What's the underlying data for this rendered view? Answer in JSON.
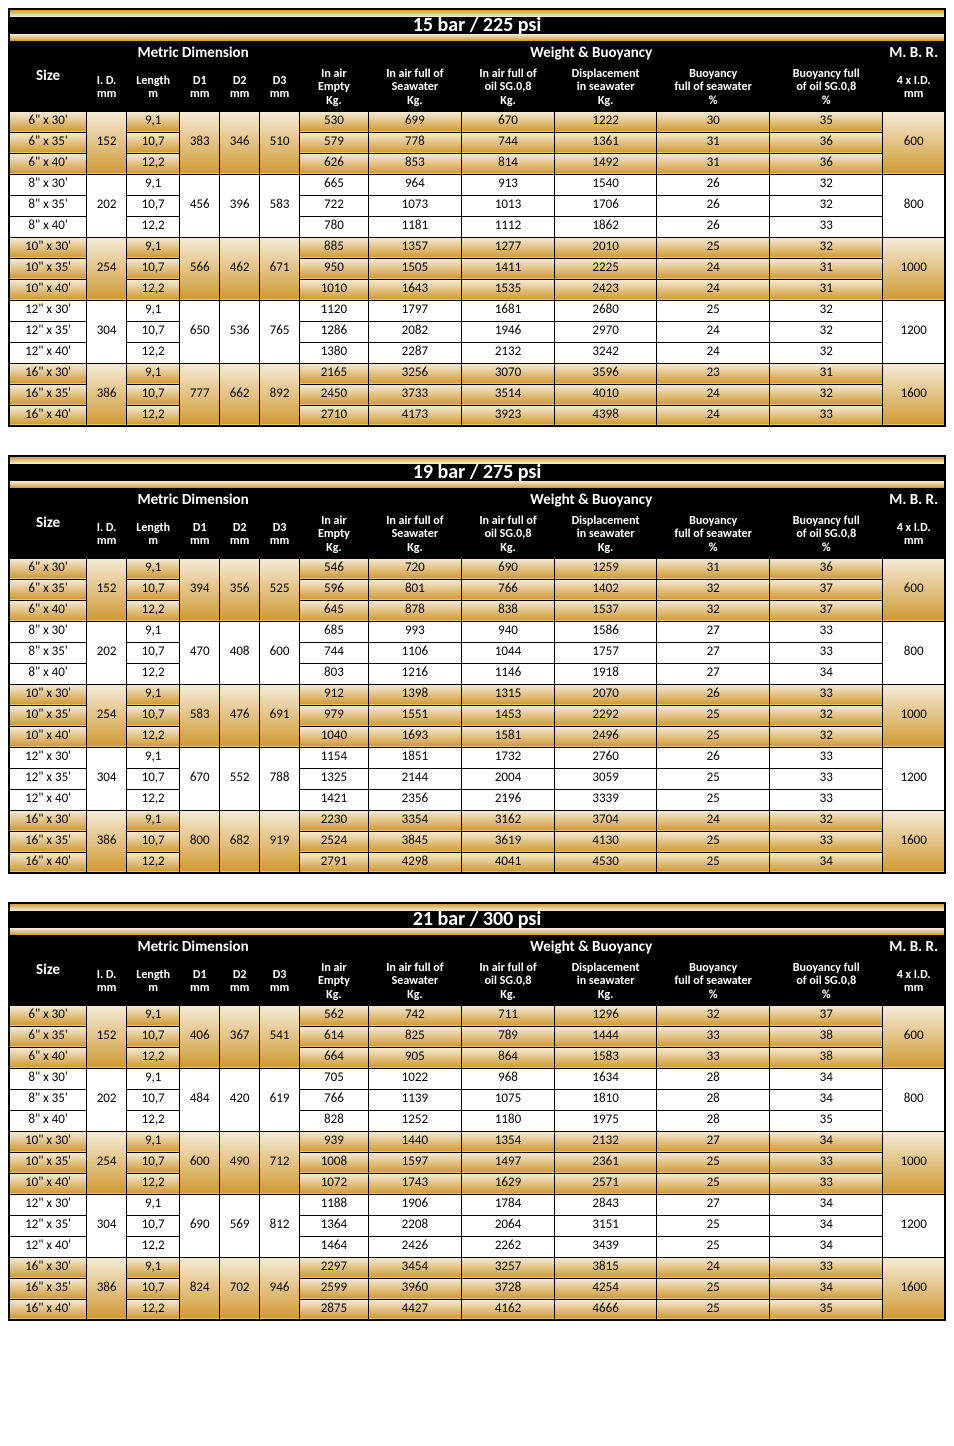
{
  "colors": {
    "gradient_top": "#f5ebd8",
    "gradient_bottom": "#d19a33",
    "header_bg": "#000000",
    "header_text": "#ffffff",
    "border": "#000000"
  },
  "typography": {
    "font_family": "Calibri",
    "title_fontsize": 20,
    "header1_fontsize": 15,
    "header2_fontsize": 12,
    "cell_fontsize": 13
  },
  "headers": {
    "size": "Size",
    "metric": "Metric Dimension",
    "weight": "Weight & Buoyancy",
    "mbr": "M. B. R.",
    "id": "I. D.\nmm",
    "length": "Length\nm",
    "d1": "D1\nmm",
    "d2": "D2\nmm",
    "d3": "D3\nmm",
    "air_empty": "In air\nEmpty\nKg.",
    "air_sea": "In air full of\nSeawater\nKg.",
    "air_oil": "In air full of\noil SG.0,8\nKg.",
    "disp": "Displacement\nin seawater\nKg.",
    "buoy_sea": "Buoyancy\nfull of seawater\n%",
    "buoy_oil": "Buoyancy full\nof oil SG.0,8\n%",
    "mbr_sub": "4 x I.D.\nmm"
  },
  "tables": [
    {
      "title": "15 bar / 225 psi",
      "groups": [
        {
          "id": "152",
          "d1": "383",
          "d2": "346",
          "d3": "510",
          "mbr": "600",
          "shaded": true,
          "rows": [
            {
              "size": "6\" x 30'",
              "len": "9,1",
              "w": [
                "530",
                "699",
                "670",
                "1222",
                "30",
                "35"
              ]
            },
            {
              "size": "6\" x 35'",
              "len": "10,7",
              "w": [
                "579",
                "778",
                "744",
                "1361",
                "31",
                "36"
              ]
            },
            {
              "size": "6\" x 40'",
              "len": "12,2",
              "w": [
                "626",
                "853",
                "814",
                "1492",
                "31",
                "36"
              ]
            }
          ]
        },
        {
          "id": "202",
          "d1": "456",
          "d2": "396",
          "d3": "583",
          "mbr": "800",
          "shaded": false,
          "rows": [
            {
              "size": "8\" x 30'",
              "len": "9,1",
              "w": [
                "665",
                "964",
                "913",
                "1540",
                "26",
                "32"
              ]
            },
            {
              "size": "8\" x 35'",
              "len": "10,7",
              "w": [
                "722",
                "1073",
                "1013",
                "1706",
                "26",
                "32"
              ]
            },
            {
              "size": "8\" x 40'",
              "len": "12,2",
              "w": [
                "780",
                "1181",
                "1112",
                "1862",
                "26",
                "33"
              ]
            }
          ]
        },
        {
          "id": "254",
          "d1": "566",
          "d2": "462",
          "d3": "671",
          "mbr": "1000",
          "shaded": true,
          "rows": [
            {
              "size": "10\" x 30'",
              "len": "9,1",
              "w": [
                "885",
                "1357",
                "1277",
                "2010",
                "25",
                "32"
              ]
            },
            {
              "size": "10\" x 35'",
              "len": "10,7",
              "w": [
                "950",
                "1505",
                "1411",
                "2225",
                "24",
                "31"
              ]
            },
            {
              "size": "10\" x 40'",
              "len": "12,2",
              "w": [
                "1010",
                "1643",
                "1535",
                "2423",
                "24",
                "31"
              ]
            }
          ]
        },
        {
          "id": "304",
          "d1": "650",
          "d2": "536",
          "d3": "765",
          "mbr": "1200",
          "shaded": false,
          "rows": [
            {
              "size": "12\" x 30'",
              "len": "9,1",
              "w": [
                "1120",
                "1797",
                "1681",
                "2680",
                "25",
                "32"
              ]
            },
            {
              "size": "12\" x 35'",
              "len": "10,7",
              "w": [
                "1286",
                "2082",
                "1946",
                "2970",
                "24",
                "32"
              ]
            },
            {
              "size": "12\" x 40'",
              "len": "12,2",
              "w": [
                "1380",
                "2287",
                "2132",
                "3242",
                "24",
                "32"
              ]
            }
          ]
        },
        {
          "id": "386",
          "d1": "777",
          "d2": "662",
          "d3": "892",
          "mbr": "1600",
          "shaded": true,
          "rows": [
            {
              "size": "16\" x 30'",
              "len": "9,1",
              "w": [
                "2165",
                "3256",
                "3070",
                "3596",
                "23",
                "31"
              ]
            },
            {
              "size": "16\" x 35'",
              "len": "10,7",
              "w": [
                "2450",
                "3733",
                "3514",
                "4010",
                "24",
                "32"
              ]
            },
            {
              "size": "16\" x 40'",
              "len": "12,2",
              "w": [
                "2710",
                "4173",
                "3923",
                "4398",
                "24",
                "33"
              ]
            }
          ]
        }
      ]
    },
    {
      "title": "19 bar / 275 psi",
      "groups": [
        {
          "id": "152",
          "d1": "394",
          "d2": "356",
          "d3": "525",
          "mbr": "600",
          "shaded": true,
          "rows": [
            {
              "size": "6\" x 30'",
              "len": "9,1",
              "w": [
                "546",
                "720",
                "690",
                "1259",
                "31",
                "36"
              ]
            },
            {
              "size": "6\" x 35'",
              "len": "10,7",
              "w": [
                "596",
                "801",
                "766",
                "1402",
                "32",
                "37"
              ]
            },
            {
              "size": "6\" x 40'",
              "len": "12,2",
              "w": [
                "645",
                "878",
                "838",
                "1537",
                "32",
                "37"
              ]
            }
          ]
        },
        {
          "id": "202",
          "d1": "470",
          "d2": "408",
          "d3": "600",
          "mbr": "800",
          "shaded": false,
          "rows": [
            {
              "size": "8\" x 30'",
              "len": "9,1",
              "w": [
                "685",
                "993",
                "940",
                "1586",
                "27",
                "33"
              ]
            },
            {
              "size": "8\" x 35'",
              "len": "10,7",
              "w": [
                "744",
                "1106",
                "1044",
                "1757",
                "27",
                "33"
              ]
            },
            {
              "size": "8\" x 40'",
              "len": "12,2",
              "w": [
                "803",
                "1216",
                "1146",
                "1918",
                "27",
                "34"
              ]
            }
          ]
        },
        {
          "id": "254",
          "d1": "583",
          "d2": "476",
          "d3": "691",
          "mbr": "1000",
          "shaded": true,
          "rows": [
            {
              "size": "10\" x 30'",
              "len": "9,1",
              "w": [
                "912",
                "1398",
                "1315",
                "2070",
                "26",
                "33"
              ]
            },
            {
              "size": "10\" x 35'",
              "len": "10,7",
              "w": [
                "979",
                "1551",
                "1453",
                "2292",
                "25",
                "32"
              ]
            },
            {
              "size": "10\" x 40'",
              "len": "12,2",
              "w": [
                "1040",
                "1693",
                "1581",
                "2496",
                "25",
                "32"
              ]
            }
          ]
        },
        {
          "id": "304",
          "d1": "670",
          "d2": "552",
          "d3": "788",
          "mbr": "1200",
          "shaded": false,
          "rows": [
            {
              "size": "12\" x 30'",
              "len": "9,1",
              "w": [
                "1154",
                "1851",
                "1732",
                "2760",
                "26",
                "33"
              ]
            },
            {
              "size": "12\" x 35'",
              "len": "10,7",
              "w": [
                "1325",
                "2144",
                "2004",
                "3059",
                "25",
                "33"
              ]
            },
            {
              "size": "12\" x 40'",
              "len": "12,2",
              "w": [
                "1421",
                "2356",
                "2196",
                "3339",
                "25",
                "33"
              ]
            }
          ]
        },
        {
          "id": "386",
          "d1": "800",
          "d2": "682",
          "d3": "919",
          "mbr": "1600",
          "shaded": true,
          "rows": [
            {
              "size": "16\" x 30'",
              "len": "9,1",
              "w": [
                "2230",
                "3354",
                "3162",
                "3704",
                "24",
                "32"
              ]
            },
            {
              "size": "16\" x 35'",
              "len": "10,7",
              "w": [
                "2524",
                "3845",
                "3619",
                "4130",
                "25",
                "33"
              ]
            },
            {
              "size": "16\" x 40'",
              "len": "12,2",
              "w": [
                "2791",
                "4298",
                "4041",
                "4530",
                "25",
                "34"
              ]
            }
          ]
        }
      ]
    },
    {
      "title": "21 bar / 300 psi",
      "groups": [
        {
          "id": "152",
          "d1": "406",
          "d2": "367",
          "d3": "541",
          "mbr": "600",
          "shaded": true,
          "rows": [
            {
              "size": "6\" x 30'",
              "len": "9,1",
              "w": [
                "562",
                "742",
                "711",
                "1296",
                "32",
                "37"
              ]
            },
            {
              "size": "6\" x 35'",
              "len": "10,7",
              "w": [
                "614",
                "825",
                "789",
                "1444",
                "33",
                "38"
              ]
            },
            {
              "size": "6\" x 40'",
              "len": "12,2",
              "w": [
                "664",
                "905",
                "864",
                "1583",
                "33",
                "38"
              ]
            }
          ]
        },
        {
          "id": "202",
          "d1": "484",
          "d2": "420",
          "d3": "619",
          "mbr": "800",
          "shaded": false,
          "rows": [
            {
              "size": "8\" x 30'",
              "len": "9,1",
              "w": [
                "705",
                "1022",
                "968",
                "1634",
                "28",
                "34"
              ]
            },
            {
              "size": "8\" x 35'",
              "len": "10,7",
              "w": [
                "766",
                "1139",
                "1075",
                "1810",
                "28",
                "34"
              ]
            },
            {
              "size": "8\" x 40'",
              "len": "12,2",
              "w": [
                "828",
                "1252",
                "1180",
                "1975",
                "28",
                "35"
              ]
            }
          ]
        },
        {
          "id": "254",
          "d1": "600",
          "d2": "490",
          "d3": "712",
          "mbr": "1000",
          "shaded": true,
          "rows": [
            {
              "size": "10\" x 30'",
              "len": "9,1",
              "w": [
                "939",
                "1440",
                "1354",
                "2132",
                "27",
                "34"
              ]
            },
            {
              "size": "10\" x 35'",
              "len": "10,7",
              "w": [
                "1008",
                "1597",
                "1497",
                "2361",
                "25",
                "33"
              ]
            },
            {
              "size": "10\" x 40'",
              "len": "12,2",
              "w": [
                "1072",
                "1743",
                "1629",
                "2571",
                "25",
                "33"
              ]
            }
          ]
        },
        {
          "id": "304",
          "d1": "690",
          "d2": "569",
          "d3": "812",
          "mbr": "1200",
          "shaded": false,
          "rows": [
            {
              "size": "12\" x 30'",
              "len": "9,1",
              "w": [
                "1188",
                "1906",
                "1784",
                "2843",
                "27",
                "34"
              ]
            },
            {
              "size": "12\" x 35'",
              "len": "10,7",
              "w": [
                "1364",
                "2208",
                "2064",
                "3151",
                "25",
                "34"
              ]
            },
            {
              "size": "12\" x 40'",
              "len": "12,2",
              "w": [
                "1464",
                "2426",
                "2262",
                "3439",
                "25",
                "34"
              ]
            }
          ]
        },
        {
          "id": "386",
          "d1": "824",
          "d2": "702",
          "d3": "946",
          "mbr": "1600",
          "shaded": true,
          "rows": [
            {
              "size": "16\" x 30'",
              "len": "9,1",
              "w": [
                "2297",
                "3454",
                "3257",
                "3815",
                "24",
                "33"
              ]
            },
            {
              "size": "16\" x 35'",
              "len": "10,7",
              "w": [
                "2599",
                "3960",
                "3728",
                "4254",
                "25",
                "34"
              ]
            },
            {
              "size": "16\" x 40'",
              "len": "12,2",
              "w": [
                "2875",
                "4427",
                "4162",
                "4666",
                "25",
                "35"
              ]
            }
          ]
        }
      ]
    }
  ]
}
